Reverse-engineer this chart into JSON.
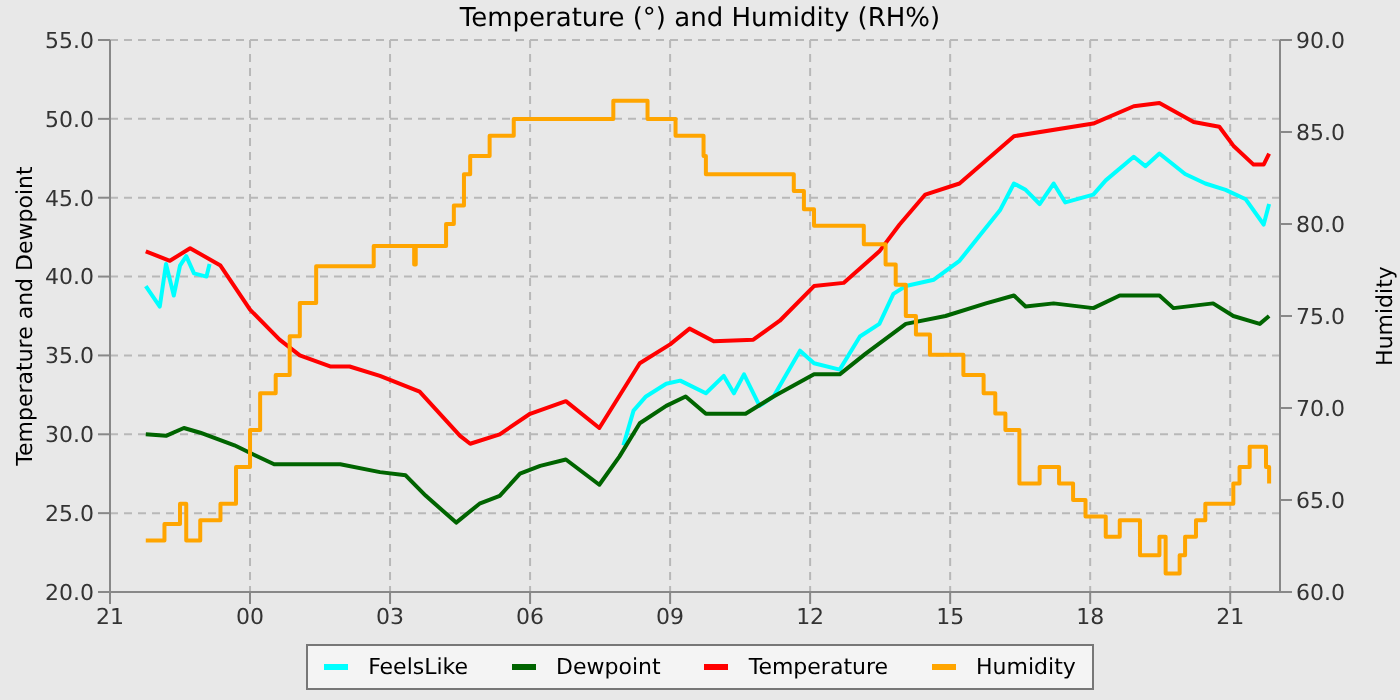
{
  "chart_data": {
    "type": "line",
    "title": "Temperature (°) and Humidity (RH%)",
    "ylabel": "Temperature and Dewpoint",
    "y2label": "Humidity",
    "xlim": [
      "--01-01T21:00",
      "--01-02T22:04"
    ],
    "xticks": [
      {
        "value": "--01-01T21:00",
        "label": "21"
      },
      {
        "value": "--01-02T00:00",
        "label": "00"
      },
      {
        "value": "--01-02T03:00",
        "label": "03"
      },
      {
        "value": "--01-02T06:00",
        "label": "06"
      },
      {
        "value": "--01-02T09:00",
        "label": "09"
      },
      {
        "value": "--01-02T12:00",
        "label": "12"
      },
      {
        "value": "--01-02T15:00",
        "label": "15"
      },
      {
        "value": "--01-02T18:00",
        "label": "18"
      },
      {
        "value": "--01-02T21:00",
        "label": "21"
      }
    ],
    "ylim": [
      20,
      55
    ],
    "yticks": [
      {
        "value": 20,
        "label": "20.0"
      },
      {
        "value": 25,
        "label": "25.0"
      },
      {
        "value": 30,
        "label": "30.0"
      },
      {
        "value": 35,
        "label": "35.0"
      },
      {
        "value": 40,
        "label": "40.0"
      },
      {
        "value": 45,
        "label": "45.0"
      },
      {
        "value": 50,
        "label": "50.0"
      },
      {
        "value": 55,
        "label": "55.0"
      }
    ],
    "y2lim": [
      60,
      90
    ],
    "y2ticks": [
      {
        "value": 60,
        "label": "60.0"
      },
      {
        "value": 65,
        "label": "65.0"
      },
      {
        "value": 70,
        "label": "70.0"
      },
      {
        "value": 75,
        "label": "75.0"
      },
      {
        "value": 80,
        "label": "80.0"
      },
      {
        "value": 85,
        "label": "85.0"
      },
      {
        "value": 90,
        "label": "90.0"
      }
    ],
    "grid": true,
    "legend": "bottom",
    "marker": "none",
    "line_style": "solid",
    "series": [
      {
        "name": "FeelsLike",
        "color": "#00ffff",
        "x": [
          "--01-01T21:46",
          "--01-01T22:04",
          "--01-01T22:12",
          "--01-01T22:22",
          "--01-01T22:30",
          "--01-01T22:38",
          "--01-01T22:48",
          "--01-01T23:04",
          "--01-01T23:08",
          "--01-01T23:12",
          "--01-02T08:00",
          "--01-02T08:13",
          "--01-02T08:29",
          "--01-02T08:55",
          "--01-02T09:13",
          "--01-02T09:46",
          "--01-02T10:09",
          "--01-02T10:22",
          "--01-02T10:35",
          "--01-02T10:55",
          "--01-02T11:13",
          "--01-02T11:47",
          "--01-02T12:05",
          "--01-02T12:38",
          "--01-02T13:04",
          "--01-02T13:29",
          "--01-02T13:47",
          "--01-02T14:03",
          "--01-02T14:39",
          "--01-02T15:12",
          "--01-02T15:38",
          "--01-02T16:04",
          "--01-02T16:22",
          "--01-02T16:37",
          "--01-02T16:55",
          "--01-02T17:13",
          "--01-02T17:28",
          "--01-02T18:04",
          "--01-02T18:20",
          "--01-02T18:56",
          "--01-02T19:11",
          "--01-02T19:29",
          "--01-02T20:02",
          "--01-02T20:28",
          "--01-02T20:54",
          "--01-02T21:20",
          "--01-02T21:43",
          "--01-02T21:50"
        ],
        "values": [
          39.4,
          38.1,
          40.8,
          38.8,
          40.7,
          41.3,
          40.2,
          40.0,
          40.8,
          null,
          29.3,
          31.5,
          32.4,
          33.2,
          33.4,
          32.6,
          33.7,
          32.6,
          33.8,
          31.8,
          32.4,
          35.3,
          34.5,
          34.1,
          36.2,
          37.0,
          38.9,
          39.4,
          39.8,
          41.0,
          42.6,
          44.2,
          45.9,
          45.5,
          44.6,
          45.9,
          44.7,
          45.2,
          46.1,
          47.6,
          47.0,
          47.8,
          46.5,
          45.9,
          45.5,
          44.9,
          43.3,
          44.6
        ]
      },
      {
        "name": "Dewpoint",
        "color": "#006400",
        "x": [
          "--01-01T21:46",
          "--01-01T22:12",
          "--01-01T22:35",
          "--01-01T22:56",
          "--01-01T23:40",
          "--01-02T00:05",
          "--01-02T00:31",
          "--01-02T01:04",
          "--01-02T01:56",
          "--01-02T02:47",
          "--01-02T03:20",
          "--01-02T03:46",
          "--01-02T04:25",
          "--01-02T04:55",
          "--01-02T05:21",
          "--01-02T05:47",
          "--01-02T06:13",
          "--01-02T06:46",
          "--01-02T07:29",
          "--01-02T07:55",
          "--01-02T08:21",
          "--01-02T08:55",
          "--01-02T09:20",
          "--01-02T09:46",
          "--01-02T10:37",
          "--01-02T11:13",
          "--01-02T12:05",
          "--01-02T12:38",
          "--01-02T13:11",
          "--01-02T14:03",
          "--01-02T14:54",
          "--01-02T15:46",
          "--01-02T16:22",
          "--01-02T16:37",
          "--01-02T17:13",
          "--01-02T18:04",
          "--01-02T18:38",
          "--01-02T19:29",
          "--01-02T19:47",
          "--01-02T20:38",
          "--01-02T21:04",
          "--01-02T21:38",
          "--01-02T21:50"
        ],
        "values": [
          30.0,
          29.9,
          30.4,
          30.1,
          29.3,
          28.7,
          28.1,
          28.1,
          28.1,
          27.6,
          27.4,
          26.1,
          24.4,
          25.6,
          26.1,
          27.5,
          28.0,
          28.4,
          26.8,
          28.6,
          30.7,
          31.8,
          32.4,
          31.3,
          31.3,
          32.4,
          33.8,
          33.8,
          35.1,
          37.0,
          37.5,
          38.3,
          38.8,
          38.1,
          38.3,
          38.0,
          38.8,
          38.8,
          38.0,
          38.3,
          37.5,
          37.0,
          37.5
        ]
      },
      {
        "name": "Temperature",
        "color": "#ff0000",
        "x": [
          "--01-01T21:46",
          "--01-01T22:17",
          "--01-01T22:43",
          "--01-01T23:22",
          "--01-02T00:00",
          "--01-02T00:38",
          "--01-02T01:04",
          "--01-02T01:43",
          "--01-02T02:08",
          "--01-02T02:47",
          "--01-02T03:38",
          "--01-02T04:30",
          "--01-02T04:43",
          "--01-02T05:21",
          "--01-02T06:00",
          "--01-02T06:46",
          "--01-02T07:29",
          "--01-02T08:21",
          "--01-02T09:00",
          "--01-02T09:25",
          "--01-02T09:56",
          "--01-02T10:47",
          "--01-02T11:21",
          "--01-02T12:05",
          "--01-02T12:43",
          "--01-02T13:29",
          "--01-02T13:55",
          "--01-02T14:28",
          "--01-02T15:12",
          "--01-02T16:22",
          "--01-02T18:04",
          "--01-02T18:56",
          "--01-02T19:29",
          "--01-02T20:13",
          "--01-02T20:46",
          "--01-02T21:04",
          "--01-02T21:30",
          "--01-02T21:43",
          "--01-02T21:50"
        ],
        "values": [
          41.6,
          41.0,
          41.8,
          40.7,
          37.9,
          36.0,
          35.0,
          34.3,
          34.3,
          33.7,
          32.7,
          29.9,
          29.4,
          30.0,
          31.3,
          32.1,
          30.4,
          34.5,
          35.7,
          36.7,
          35.9,
          36.0,
          37.2,
          39.4,
          39.6,
          41.6,
          43.3,
          45.2,
          45.9,
          48.9,
          49.7,
          50.8,
          51.0,
          49.8,
          49.5,
          48.3,
          47.1,
          47.1,
          47.8
        ]
      },
      {
        "name": "Humidity",
        "color": "#ffa500",
        "type": "step",
        "axis": "y2",
        "x": [
          "--01-01T21:46",
          "--01-01T22:10",
          "--01-01T22:30",
          "--01-01T22:38",
          "--01-01T22:56",
          "--01-01T23:22",
          "--01-01T23:42",
          "--01-02T00:00",
          "--01-02T00:13",
          "--01-02T00:33",
          "--01-02T00:51",
          "--01-02T01:04",
          "--01-02T01:25",
          "--01-02T02:39",
          "--01-02T03:31",
          "--01-02T03:33",
          "--01-02T03:38",
          "--01-02T04:12",
          "--01-02T04:22",
          "--01-02T04:35",
          "--01-02T04:43",
          "--01-02T05:08",
          "--01-02T05:39",
          "--01-02T07:47",
          "--01-02T08:31",
          "--01-02T09:07",
          "--01-02T09:43",
          "--01-02T09:46",
          "--01-02T11:03",
          "--01-02T11:39",
          "--01-02T11:52",
          "--01-02T12:05",
          "--01-02T13:09",
          "--01-02T13:37",
          "--01-02T13:50",
          "--01-02T14:03",
          "--01-02T14:16",
          "--01-02T14:34",
          "--01-02T15:17",
          "--01-02T15:43",
          "--01-02T15:58",
          "--01-02T16:11",
          "--01-02T16:29",
          "--01-02T16:55",
          "--01-02T17:20",
          "--01-02T17:38",
          "--01-02T17:54",
          "--01-02T18:20",
          "--01-02T18:38",
          "--01-02T19:04",
          "--01-02T19:29",
          "--01-02T19:37",
          "--01-02T19:55",
          "--01-02T20:02",
          "--01-02T20:16",
          "--01-02T20:28",
          "--01-02T20:54",
          "--01-02T21:04",
          "--01-02T21:12",
          "--01-02T21:25",
          "--01-02T21:46",
          "--01-02T21:50"
        ],
        "values": [
          62.8,
          63.7,
          64.8,
          62.8,
          63.9,
          64.8,
          66.8,
          68.8,
          70.8,
          71.8,
          73.9,
          75.7,
          77.7,
          78.8,
          77.8,
          78.8,
          78.8,
          80.0,
          81.0,
          82.7,
          83.7,
          84.8,
          85.7,
          86.7,
          85.7,
          84.8,
          83.7,
          82.7,
          82.7,
          81.8,
          80.8,
          79.9,
          78.9,
          77.8,
          76.7,
          75.0,
          74.0,
          72.9,
          71.8,
          70.8,
          69.7,
          68.8,
          65.9,
          66.8,
          65.9,
          65.0,
          64.1,
          63.0,
          63.9,
          62.0,
          63.0,
          61.0,
          62.0,
          63.0,
          63.9,
          64.8,
          64.8,
          65.9,
          66.8,
          67.9,
          66.8,
          65.9
        ]
      }
    ]
  }
}
